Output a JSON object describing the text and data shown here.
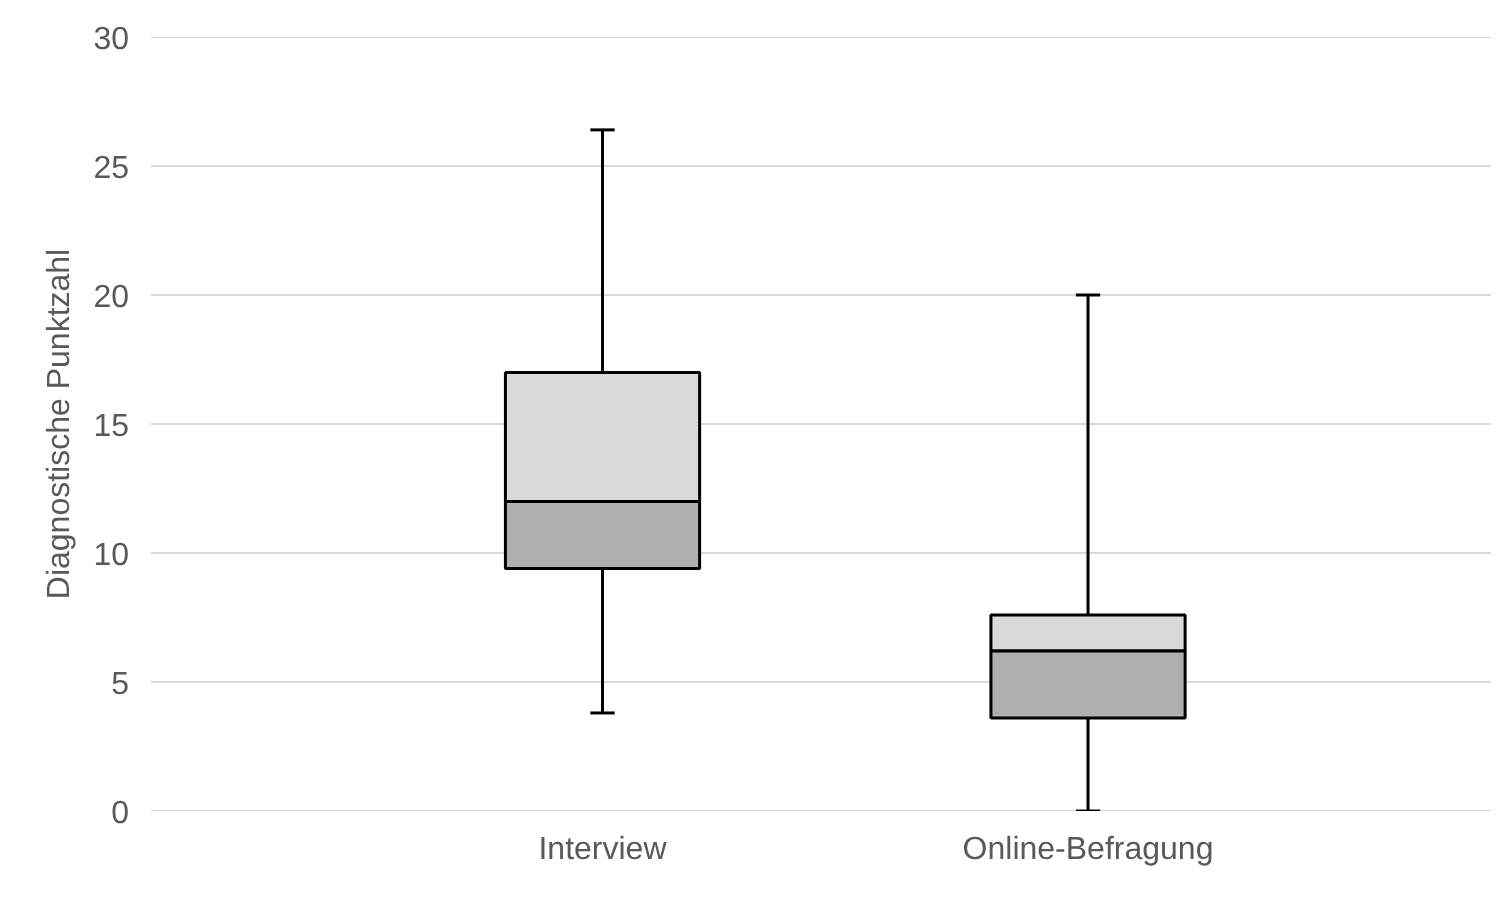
{
  "chart_data": {
    "type": "box",
    "ylabel": "Diagnostische Punktzahl",
    "categories": [
      "Interview",
      "Online-Befragung"
    ],
    "boxes": [
      {
        "low": 3.8,
        "q1": 9.4,
        "median": 12.0,
        "q3": 17.0,
        "high": 26.4
      },
      {
        "low": 0,
        "q1": 3.6,
        "median": 6.2,
        "q3": 7.6,
        "high": 20.0
      }
    ],
    "ylim": [
      0,
      30
    ],
    "yticks": [
      0,
      5,
      10,
      15,
      20,
      25,
      30
    ],
    "grid": "y"
  }
}
